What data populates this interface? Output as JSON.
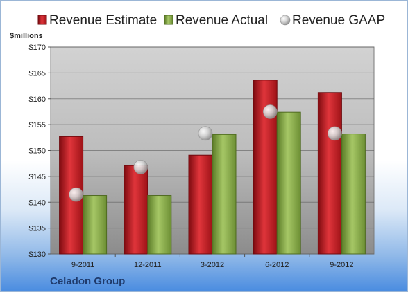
{
  "company_label": "Celadon Group",
  "chart_data": {
    "type": "bar",
    "categories": [
      "9-2011",
      "12-2011",
      "3-2012",
      "6-2012",
      "9-2012"
    ],
    "series": [
      {
        "name": "Revenue Estimate",
        "kind": "bar",
        "color": "#c81e24",
        "values": [
          152.7,
          147.1,
          149.1,
          163.6,
          161.2
        ]
      },
      {
        "name": "Revenue Actual",
        "kind": "bar",
        "color": "#8aab4a",
        "values": [
          141.3,
          141.3,
          153.1,
          157.4,
          153.2
        ]
      },
      {
        "name": "Revenue GAAP",
        "kind": "marker",
        "color": "#b8b8b8",
        "values": [
          141.5,
          146.8,
          153.3,
          157.5,
          153.3
        ]
      }
    ],
    "ylabel": "$millions",
    "ylim": [
      130,
      170
    ],
    "yticks": [
      130,
      135,
      140,
      145,
      150,
      155,
      160,
      165,
      170
    ],
    "ytick_labels": [
      "$130",
      "$135",
      "$140",
      "$145",
      "$150",
      "$155",
      "$160",
      "$165",
      "$170"
    ],
    "grid": true,
    "legend_position": "top"
  }
}
